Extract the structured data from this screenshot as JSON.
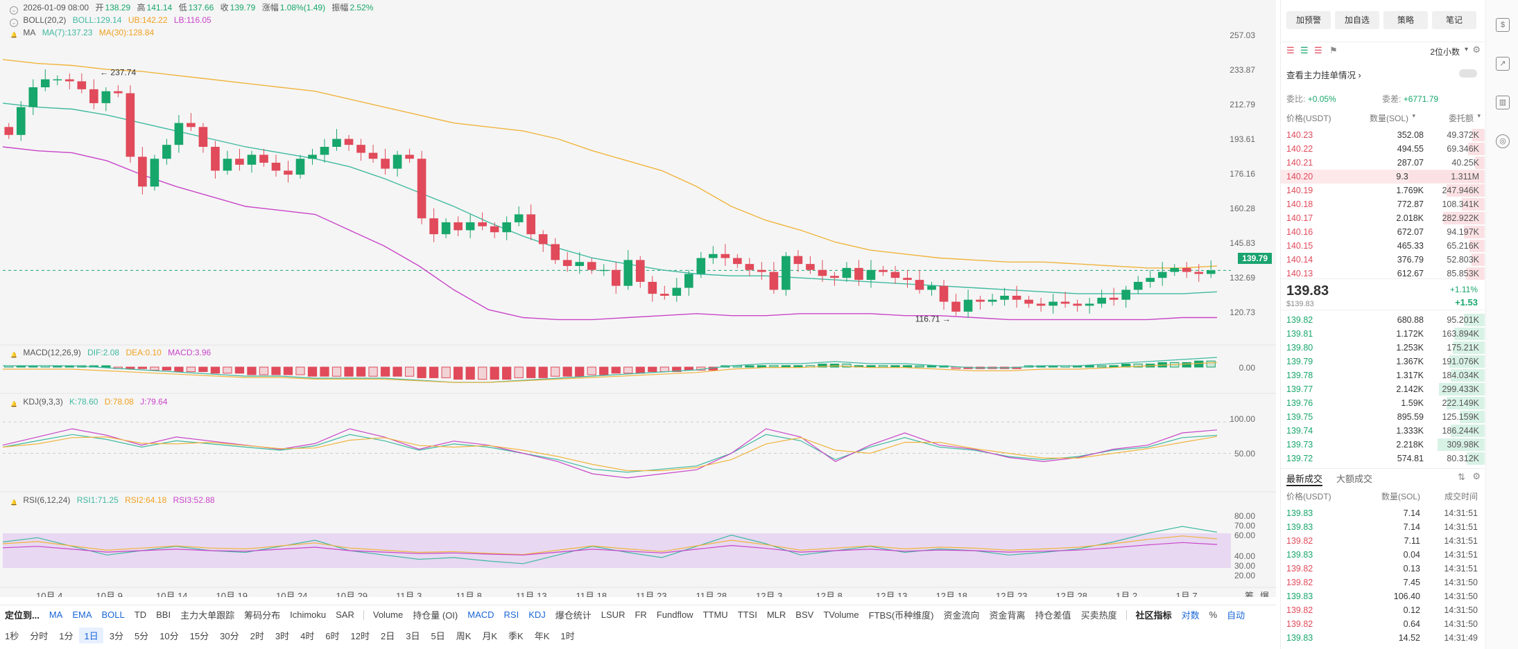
{
  "header": {
    "date": "2026-01-09 08:00",
    "open_label": "开",
    "open": "138.29",
    "high_label": "高",
    "high": "141.14",
    "low_label": "低",
    "low": "137.66",
    "close_label": "收",
    "close": "139.79",
    "chg_label": "涨幅",
    "chg": "1.08%(1.49)",
    "amp_label": "振幅",
    "amp": "2.52%"
  },
  "indicators": {
    "boll": {
      "name": "BOLL(20,2)",
      "boll": "BOLL:129.14",
      "ub": "UB:142.22",
      "lb": "LB:116.05"
    },
    "ma": {
      "name": "MA",
      "ma7": "MA(7):137.23",
      "ma30": "MA(30):128.84"
    },
    "macd": {
      "name": "MACD(12,26,9)",
      "dif": "DIF:2.08",
      "dea": "DEA:0.10",
      "macd": "MACD:3.96"
    },
    "kdj": {
      "name": "KDJ(9,3,3)",
      "k": "K:78.60",
      "d": "D:78.08",
      "j": "J:79.64"
    },
    "rsi": {
      "name": "RSI(6,12,24)",
      "r1": "RSI1:71.25",
      "r2": "RSI2:64.18",
      "r3": "RSI3:52.88"
    }
  },
  "price_axis": [
    "257.03",
    "233.87",
    "212.79",
    "193.61",
    "176.16",
    "160.28",
    "145.83",
    "132.69",
    "120.73"
  ],
  "current_price": "139.79",
  "macd_axis": [
    "0.00"
  ],
  "kdj_axis": [
    "100.00",
    "50.00"
  ],
  "rsi_axis": [
    "80.00",
    "70.00",
    "60.00",
    "40.00",
    "30.00",
    "20.00"
  ],
  "annotations": {
    "max": "← 237.74",
    "min": "116.71 →"
  },
  "x_axis": [
    "10月 4",
    "10月 9",
    "10月 14",
    "10月 19",
    "10月 24",
    "10月 29",
    "11月 3",
    "11月 8",
    "11月 13",
    "11月 18",
    "11月 23",
    "11月 28",
    "12月 3",
    "12月 8",
    "12月 13",
    "12月 18",
    "12月 23",
    "12月 28",
    "1月 2",
    "1月 7"
  ],
  "x_axis_right": [
    "筹",
    "爆"
  ],
  "toolbar_indicators": [
    "定位到...",
    "MA",
    "EMA",
    "BOLL",
    "TD",
    "BBI",
    "主力大单跟踪",
    "筹码分布",
    "Ichimoku",
    "SAR",
    "Volume",
    "持仓量 (OI)",
    "MACD",
    "RSI",
    "KDJ",
    "爆仓统计",
    "LSUR",
    "FR",
    "Fundflow",
    "TTMU",
    "TTSI",
    "MLR",
    "BSV",
    "TVolume",
    "FTBS(币种维度)",
    "资金流向",
    "资金背离",
    "持仓差值",
    "买卖热度",
    "社区指标",
    "对数",
    "%",
    "自动"
  ],
  "timeframes": [
    "1秒",
    "分时",
    "1分",
    "1日",
    "3分",
    "5分",
    "10分",
    "15分",
    "30分",
    "2时",
    "3时",
    "4时",
    "6时",
    "12时",
    "2日",
    "3日",
    "5日",
    "周K",
    "月K",
    "季K",
    "年K",
    "1时"
  ],
  "active_timeframe": "1日",
  "side": {
    "buttons": [
      "加预警",
      "加自选",
      "策略",
      "笔记"
    ],
    "decimals": "2位小数",
    "main_orders": "查看主力挂单情况",
    "wb_label": "委比:",
    "wb": "+0.05%",
    "wc_label": "委差:",
    "wc": "+6771.79",
    "cols": [
      "价格(USDT)",
      "数量(SOL)",
      "委托额"
    ],
    "asks": [
      {
        "p": "140.23",
        "q": "352.08",
        "t": "49.372K",
        "w": 0.16
      },
      {
        "p": "140.22",
        "q": "494.55",
        "t": "69.346K",
        "w": 0.22
      },
      {
        "p": "140.21",
        "q": "287.07",
        "t": "40.25K",
        "w": 0.13
      },
      {
        "p": "140.20",
        "q": "9.353K",
        "t": "1.311M",
        "w": 1.0
      },
      {
        "p": "140.19",
        "q": "1.769K",
        "t": "247.946K",
        "w": 0.5
      },
      {
        "p": "140.18",
        "q": "772.87",
        "t": "108.341K",
        "w": 0.3
      },
      {
        "p": "140.17",
        "q": "2.018K",
        "t": "282.922K",
        "w": 0.55
      },
      {
        "p": "140.16",
        "q": "672.07",
        "t": "94.197K",
        "w": 0.27
      },
      {
        "p": "140.15",
        "q": "465.33",
        "t": "65.216K",
        "w": 0.2
      },
      {
        "p": "140.14",
        "q": "376.79",
        "t": "52.803K",
        "w": 0.17
      },
      {
        "p": "140.13",
        "q": "612.67",
        "t": "85.853K",
        "w": 0.25
      }
    ],
    "last_price": "139.83",
    "last_price_usd": "$139.83",
    "last_pct": "+1.11%",
    "last_chg": "+1.53",
    "bids": [
      {
        "p": "139.82",
        "q": "680.88",
        "t": "95.201K",
        "w": 0.27
      },
      {
        "p": "139.81",
        "q": "1.172K",
        "t": "163.894K",
        "w": 0.4
      },
      {
        "p": "139.80",
        "q": "1.253K",
        "t": "175.21K",
        "w": 0.42
      },
      {
        "p": "139.79",
        "q": "1.367K",
        "t": "191.076K",
        "w": 0.46
      },
      {
        "p": "139.78",
        "q": "1.317K",
        "t": "184.034K",
        "w": 0.45
      },
      {
        "p": "139.77",
        "q": "2.142K",
        "t": "299.433K",
        "w": 0.6
      },
      {
        "p": "139.76",
        "q": "1.59K",
        "t": "222.149K",
        "w": 0.5
      },
      {
        "p": "139.75",
        "q": "895.59",
        "t": "125.159K",
        "w": 0.33
      },
      {
        "p": "139.74",
        "q": "1.333K",
        "t": "186.244K",
        "w": 0.45
      },
      {
        "p": "139.73",
        "q": "2.218K",
        "t": "309.98K",
        "w": 0.62
      },
      {
        "p": "139.72",
        "q": "574.81",
        "t": "80.312K",
        "w": 0.24
      }
    ],
    "trades_tabs": [
      "最新成交",
      "大额成交"
    ],
    "trade_cols": [
      "价格(USDT)",
      "数量(SOL)",
      "成交时间"
    ],
    "trades": [
      {
        "p": "139.83",
        "q": "7.14",
        "t": "14:31:51",
        "s": "buy"
      },
      {
        "p": "139.83",
        "q": "7.14",
        "t": "14:31:51",
        "s": "buy"
      },
      {
        "p": "139.82",
        "q": "7.11",
        "t": "14:31:51",
        "s": "sell"
      },
      {
        "p": "139.83",
        "q": "0.04",
        "t": "14:31:51",
        "s": "buy"
      },
      {
        "p": "139.82",
        "q": "0.13",
        "t": "14:31:51",
        "s": "sell"
      },
      {
        "p": "139.82",
        "q": "7.45",
        "t": "14:31:50",
        "s": "sell"
      },
      {
        "p": "139.83",
        "q": "106.40",
        "t": "14:31:50",
        "s": "buy"
      },
      {
        "p": "139.82",
        "q": "0.12",
        "t": "14:31:50",
        "s": "sell"
      },
      {
        "p": "139.82",
        "q": "0.64",
        "t": "14:31:50",
        "s": "sell"
      },
      {
        "p": "139.83",
        "q": "14.52",
        "t": "14:31:49",
        "s": "buy"
      }
    ]
  },
  "colors": {
    "up": "#17a66b",
    "down": "#e04a5a",
    "ub": "#f0b43c",
    "boll": "#3fb9a0",
    "lb": "#c844c8",
    "accent": "#1a66d6"
  },
  "chart_data": {
    "type": "candlestick",
    "x_labels": [
      "10月 4",
      "10月 9",
      "10月 14",
      "10月 19",
      "10月 24",
      "10月 29",
      "11月 3",
      "11月 8",
      "11月 13",
      "11月 18",
      "11月 23",
      "11月 28",
      "12月 3",
      "12月 8",
      "12月 13",
      "12月 18",
      "12月 23",
      "12月 28",
      "1月 2",
      "1月 7"
    ],
    "y_ticks": [
      257.03,
      233.87,
      212.79,
      193.61,
      176.16,
      160.28,
      145.83,
      132.69,
      120.73
    ],
    "ohlc_close": [
      208,
      222,
      232,
      236,
      236,
      235,
      231,
      224,
      230,
      229,
      197,
      182,
      196,
      203,
      214,
      212,
      202,
      190,
      196,
      193,
      198,
      194,
      190,
      188,
      196,
      198,
      202,
      206,
      203,
      199,
      196,
      191,
      198,
      196,
      166,
      158,
      164,
      160,
      164,
      162,
      159,
      164,
      168,
      158,
      153,
      145,
      142,
      144,
      140,
      140,
      132,
      145,
      134,
      128,
      127,
      131,
      138,
      146,
      148,
      146,
      143,
      140,
      139,
      130,
      147,
      143,
      140,
      137,
      136,
      141,
      135,
      140,
      139,
      136,
      135,
      130,
      132,
      124,
      119,
      125,
      124,
      125,
      127,
      125,
      123,
      122,
      124,
      123,
      122,
      123,
      126,
      125,
      130,
      134,
      136,
      139,
      141,
      139,
      138,
      139.79
    ],
    "series": [
      {
        "name": "UB",
        "values": [
          246,
          244,
          243,
          241,
          240,
          238,
          236,
          234,
          232,
          230,
          226,
          222,
          218,
          214,
          212,
          210,
          206,
          200,
          195,
          190,
          182,
          172,
          165,
          160,
          154,
          150,
          148,
          146,
          145,
          144,
          144,
          143,
          142,
          141,
          141,
          142
        ]
      },
      {
        "name": "BOLL",
        "values": [
          224,
          222,
          221,
          218,
          214,
          210,
          206,
          202,
          199,
          196,
          192,
          186,
          179,
          172,
          164,
          157,
          151,
          146,
          143,
          140,
          138,
          137,
          137,
          136,
          135,
          134,
          133,
          132,
          131,
          130,
          129,
          128,
          128,
          128,
          128,
          129
        ]
      },
      {
        "name": "LB",
        "values": [
          202,
          200,
          199,
          195,
          188,
          182,
          177,
          172,
          170,
          168,
          160,
          152,
          142,
          130,
          120,
          116,
          115,
          115,
          116,
          117,
          118,
          117,
          117,
          118,
          118,
          118,
          117,
          117,
          116,
          115,
          115,
          115,
          115,
          115,
          116,
          116
        ]
      },
      {
        "name": "MACD",
        "values": [
          0,
          0,
          0,
          -1,
          -2,
          -3,
          -4,
          -5,
          -5,
          -6,
          -6,
          -6,
          -7,
          -8,
          -8,
          -7,
          -6,
          -5,
          -4,
          -3,
          -2,
          0,
          1,
          1,
          2,
          1,
          1,
          0,
          -1,
          -1,
          0,
          0,
          1,
          2,
          3,
          4
        ]
      },
      {
        "name": "KDJ-K",
        "values": [
          60,
          70,
          80,
          72,
          60,
          70,
          65,
          60,
          55,
          62,
          80,
          70,
          55,
          65,
          60,
          50,
          40,
          25,
          20,
          25,
          30,
          50,
          80,
          70,
          40,
          60,
          75,
          60,
          55,
          45,
          40,
          45,
          55,
          60,
          75,
          78.6
        ]
      },
      {
        "name": "RSI1",
        "values": [
          60,
          65,
          55,
          45,
          50,
          55,
          50,
          48,
          55,
          62,
          50,
          45,
          40,
          42,
          38,
          35,
          45,
          55,
          48,
          42,
          55,
          68,
          58,
          45,
          50,
          55,
          48,
          52,
          50,
          45,
          48,
          52,
          60,
          70,
          78,
          71.25
        ]
      }
    ]
  }
}
